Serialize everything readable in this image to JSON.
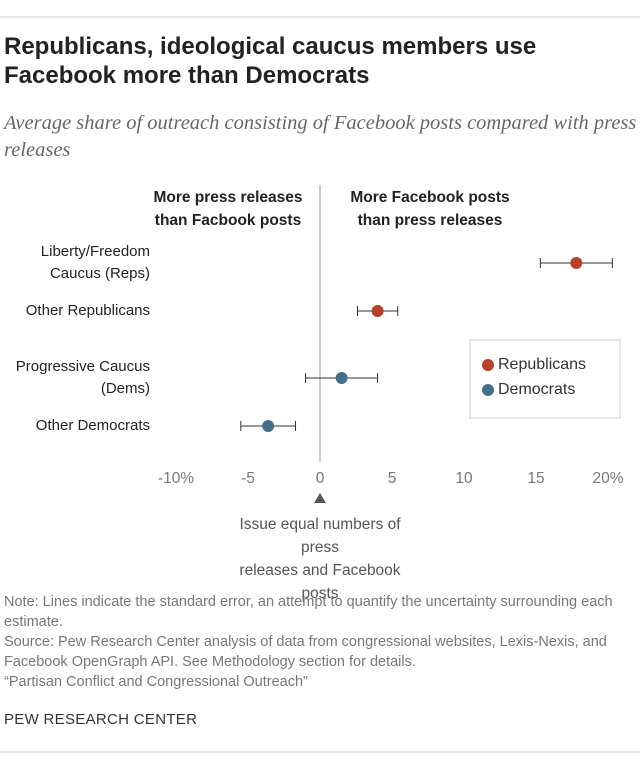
{
  "chart_data": {
    "type": "dot",
    "title": "Republicans, ideological caucus members use Facebook more than Democrats",
    "subtitle": "Average share of outreach consisting of Facebook posts compared with press releases",
    "left_header": [
      "More press releases",
      "than Facbook posts"
    ],
    "right_header": [
      "More Facebook posts",
      "than press releases"
    ],
    "zero_annotation": [
      "Issue equal numbers of press",
      "releases and Facebook posts"
    ],
    "categories": [
      "Liberty/Freedom Caucus (Reps)",
      "Other Republicans",
      "Progressive Caucus (Dems)",
      "Other Democrats"
    ],
    "series": [
      {
        "name": "Republicans",
        "color": "#b5412c",
        "values": [
          17.8,
          4.0,
          null,
          null
        ],
        "errors": [
          2.5,
          1.4,
          null,
          null
        ]
      },
      {
        "name": "Democrats",
        "color": "#436f8a",
        "values": [
          null,
          null,
          1.5,
          -3.6
        ],
        "errors": [
          null,
          null,
          2.5,
          1.9
        ]
      }
    ],
    "xlim": [
      -10,
      20
    ],
    "xticks": [
      {
        "value": -10,
        "label": "-10%"
      },
      -5,
      0,
      5,
      10,
      15,
      {
        "value": 20,
        "label": "20%"
      }
    ],
    "grid": false,
    "legend": "right",
    "note": "Note: Lines indicate the standard error, an attempt to quantify the uncertainty surrounding each estimate.",
    "source": "Source: Pew Research Center analysis of data from congressional websites, Lexis-Nexis, and Facebook OpenGraph API. See Methodology section for details.",
    "source_title": "“Partisan Conflict and Congressional Outreach”",
    "branding": "PEW RESEARCH CENTER"
  }
}
